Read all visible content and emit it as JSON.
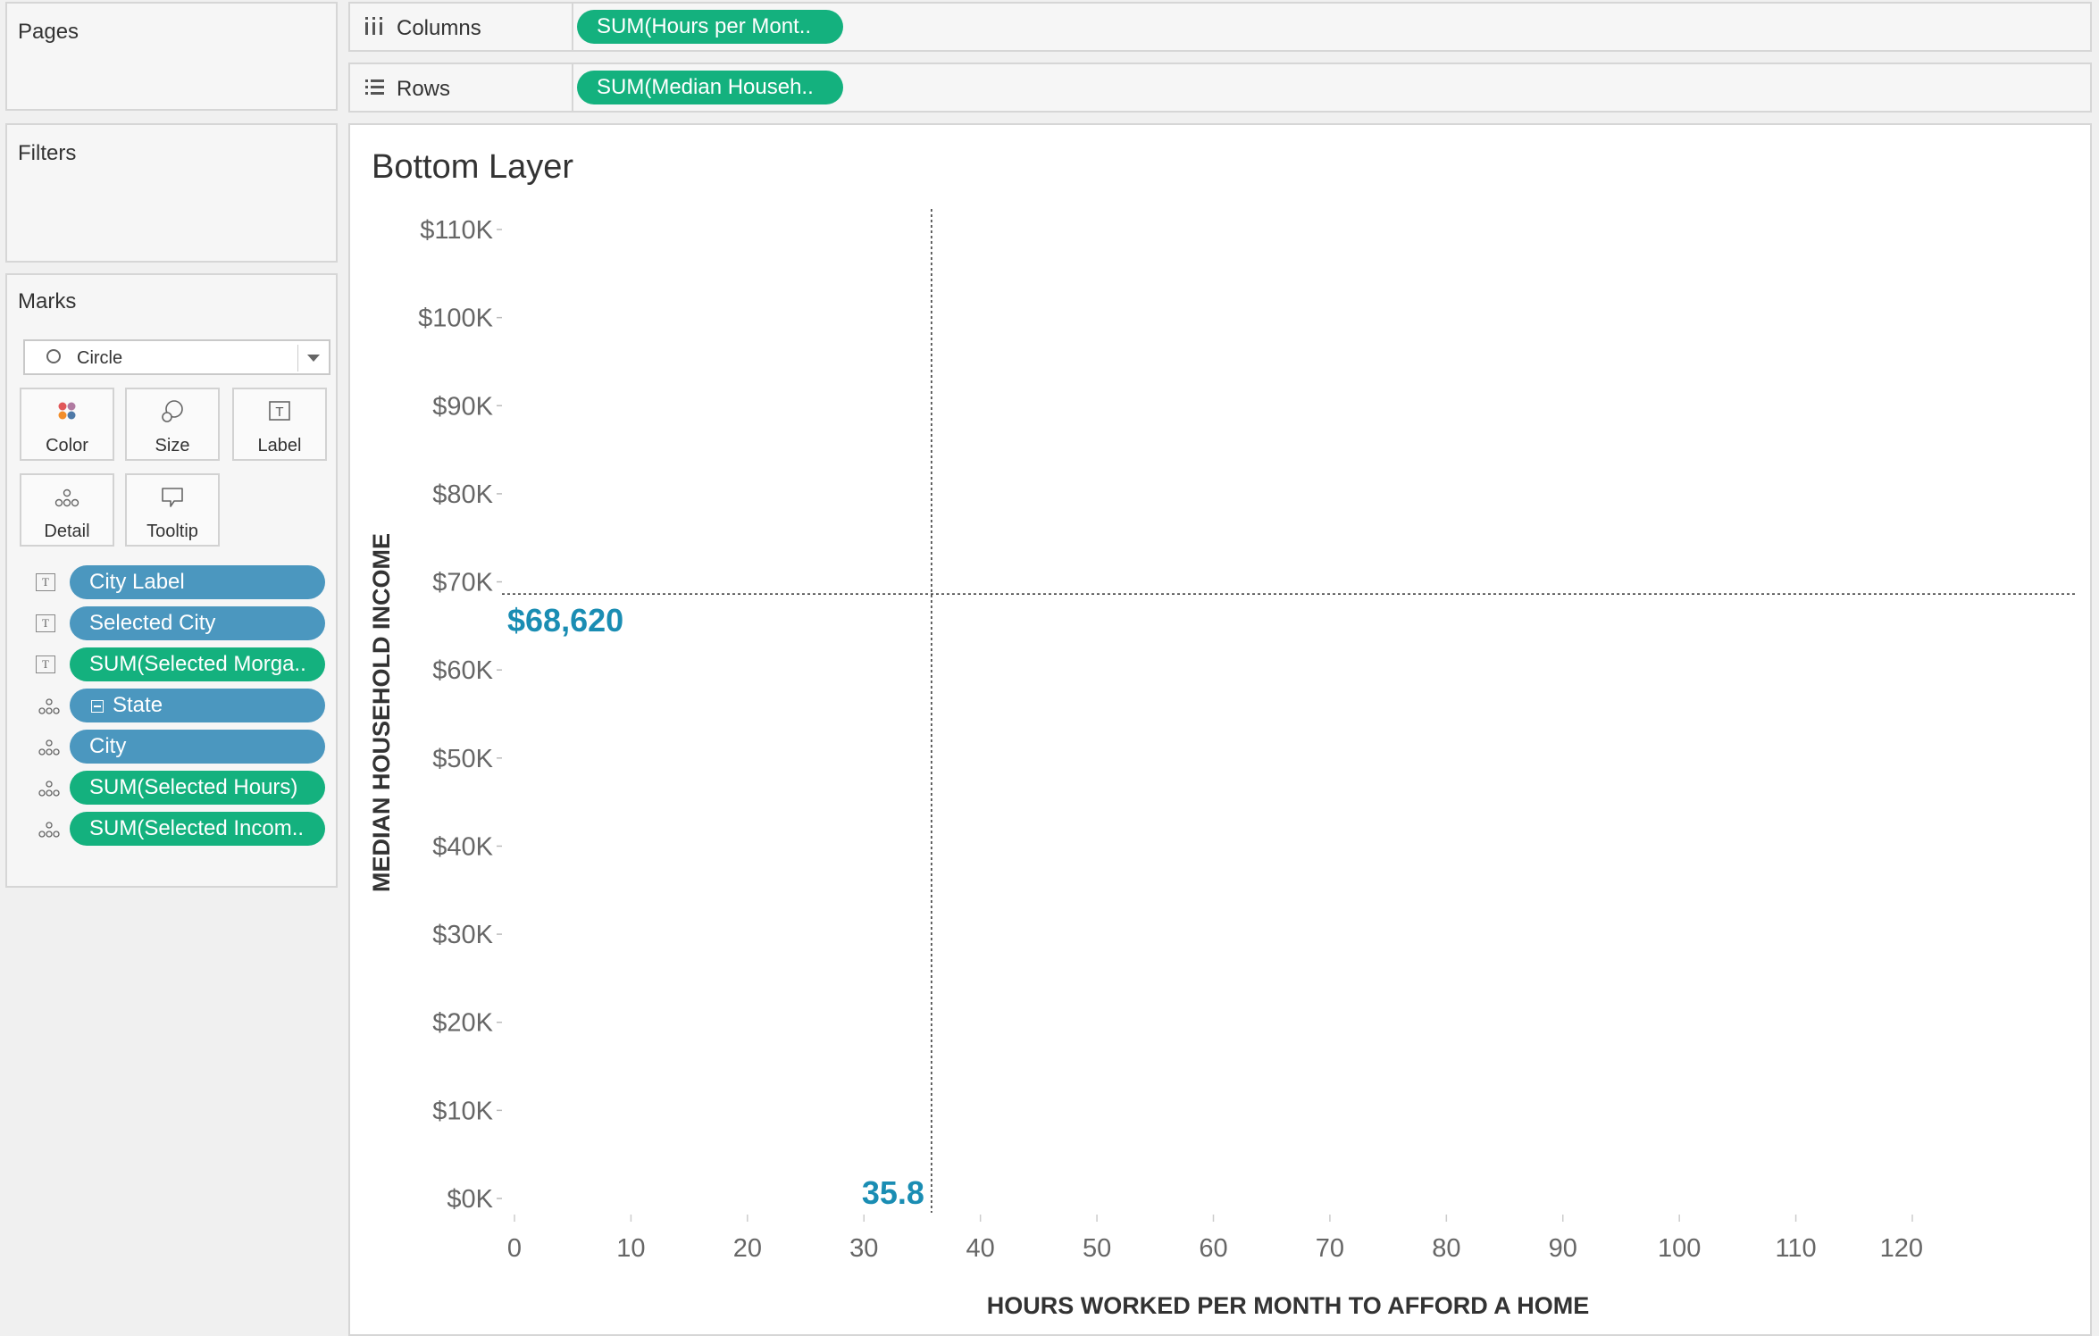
{
  "pages": {
    "title": "Pages"
  },
  "filters": {
    "title": "Filters"
  },
  "shelves": {
    "columns": {
      "label": "Columns",
      "icon": "columns-icon",
      "pill": "SUM(Hours per Mont.."
    },
    "rows": {
      "label": "Rows",
      "icon": "rows-icon",
      "pill": "SUM(Median Househ.."
    }
  },
  "marks": {
    "title": "Marks",
    "mark_type": "Circle",
    "buttons": [
      {
        "label": "Color",
        "icon": "color-icon"
      },
      {
        "label": "Size",
        "icon": "size-icon"
      },
      {
        "label": "Label",
        "icon": "label-icon"
      },
      {
        "label": "Detail",
        "icon": "detail-icon"
      },
      {
        "label": "Tooltip",
        "icon": "tooltip-icon"
      }
    ],
    "fields": [
      {
        "type": "label",
        "icon": "text-icon",
        "name": "City Label",
        "color": "#4b97bf"
      },
      {
        "type": "label",
        "icon": "text-icon",
        "name": "Selected City",
        "color": "#4b97bf"
      },
      {
        "type": "label",
        "icon": "text-icon",
        "name": "SUM(Selected Morga..",
        "color": "#14b17e"
      },
      {
        "type": "detail",
        "icon": "detail-icon",
        "name": "State",
        "color": "#4b97bf"
      },
      {
        "type": "detail",
        "icon": "detail-icon",
        "name": "City",
        "color": "#4b97bf"
      },
      {
        "type": "detail",
        "icon": "detail-icon",
        "name": "SUM(Selected Hours)",
        "color": "#14b17e"
      },
      {
        "type": "detail",
        "icon": "detail-icon",
        "name": "SUM(Selected Incom..",
        "color": "#14b17e"
      }
    ]
  },
  "colors": {
    "measure_pill": "#14b17e",
    "dimension_pill": "#4b97bf",
    "reference_label": "#1a8db3"
  },
  "chart_data": {
    "type": "scatter",
    "title": "Bottom Layer",
    "xlabel": "HOURS WORKED PER MONTH TO AFFORD A HOME",
    "ylabel": "MEDIAN HOUSEHOLD INCOME",
    "xlim": [
      0,
      120
    ],
    "ylim": [
      0,
      110000
    ],
    "x_ticks": [
      0,
      10,
      20,
      30,
      40,
      50,
      60,
      70,
      80,
      90,
      100,
      110,
      120
    ],
    "x_tick_labels": [
      "0",
      "10",
      "20",
      "30",
      "40",
      "50",
      "60",
      "70",
      "80",
      "90",
      "100",
      "110",
      "120"
    ],
    "y_ticks": [
      0,
      10000,
      20000,
      30000,
      40000,
      50000,
      60000,
      70000,
      80000,
      90000,
      100000,
      110000
    ],
    "y_tick_labels": [
      "$0K",
      "$10K",
      "$20K",
      "$30K",
      "$40K",
      "$50K",
      "$60K",
      "$70K",
      "$80K",
      "$90K",
      "$100K",
      "$110K"
    ],
    "reference_lines": [
      {
        "axis": "x",
        "value": 35.8,
        "label": "35.8"
      },
      {
        "axis": "y",
        "value": 68620,
        "label": "$68,620"
      }
    ],
    "grid": false
  }
}
